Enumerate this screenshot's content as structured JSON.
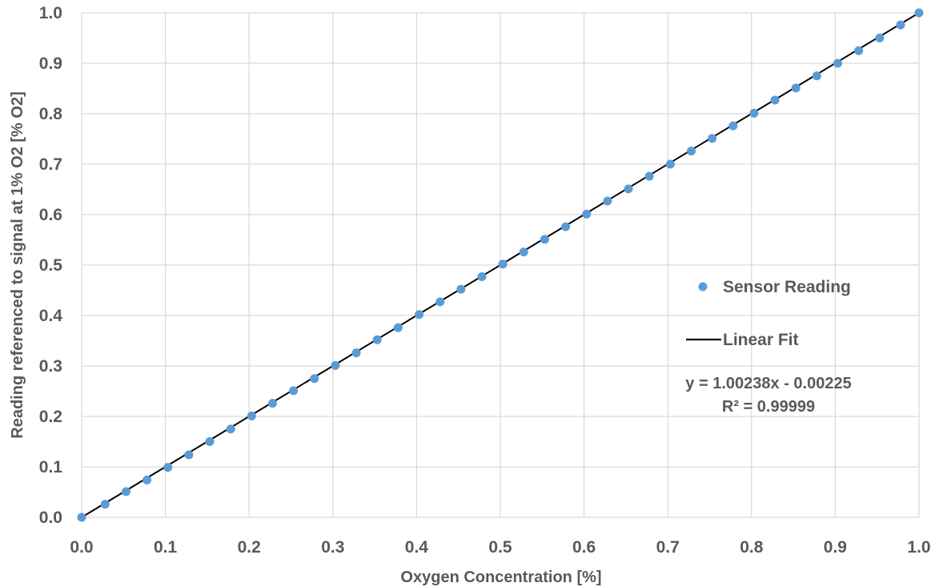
{
  "chart_data": {
    "type": "scatter",
    "xlabel": "Oxygen Concentration [%]",
    "ylabel": "Reading referenced to signal at 1% O2 [% O2]",
    "xlim": [
      0,
      1
    ],
    "ylim": [
      0,
      1
    ],
    "x_ticks": [
      "0.0",
      "0.1",
      "0.2",
      "0.3",
      "0.4",
      "0.5",
      "0.6",
      "0.7",
      "0.8",
      "0.9",
      "1.0"
    ],
    "y_ticks": [
      "0.0",
      "0.1",
      "0.2",
      "0.3",
      "0.4",
      "0.5",
      "0.6",
      "0.7",
      "0.8",
      "0.9",
      "1.0"
    ],
    "grid": true,
    "legend_position": "right",
    "series": [
      {
        "name": "Sensor Reading",
        "kind": "scatter",
        "color": "#5b9bd5",
        "x": [
          0.0,
          0.028,
          0.053,
          0.078,
          0.103,
          0.128,
          0.153,
          0.178,
          0.203,
          0.228,
          0.253,
          0.278,
          0.303,
          0.328,
          0.353,
          0.378,
          0.403,
          0.428,
          0.453,
          0.478,
          0.503,
          0.528,
          0.553,
          0.578,
          0.603,
          0.628,
          0.653,
          0.678,
          0.703,
          0.728,
          0.753,
          0.778,
          0.803,
          0.828,
          0.853,
          0.878,
          0.903,
          0.928,
          0.953,
          0.978,
          1.0
        ],
        "y": [
          0.0,
          0.026,
          0.051,
          0.074,
          0.099,
          0.124,
          0.15,
          0.175,
          0.201,
          0.226,
          0.251,
          0.275,
          0.301,
          0.326,
          0.352,
          0.376,
          0.402,
          0.427,
          0.452,
          0.477,
          0.502,
          0.526,
          0.551,
          0.576,
          0.601,
          0.627,
          0.651,
          0.676,
          0.7,
          0.726,
          0.751,
          0.776,
          0.801,
          0.827,
          0.851,
          0.875,
          0.9,
          0.925,
          0.95,
          0.976,
          1.0
        ]
      },
      {
        "name": "Linear Fit",
        "kind": "line",
        "color": "#000000",
        "slope": 1.00238,
        "intercept": -0.00225
      }
    ],
    "annotations": {
      "equation": "y = 1.00238x - 0.00225",
      "r_squared": "R² = 0.99999"
    }
  }
}
